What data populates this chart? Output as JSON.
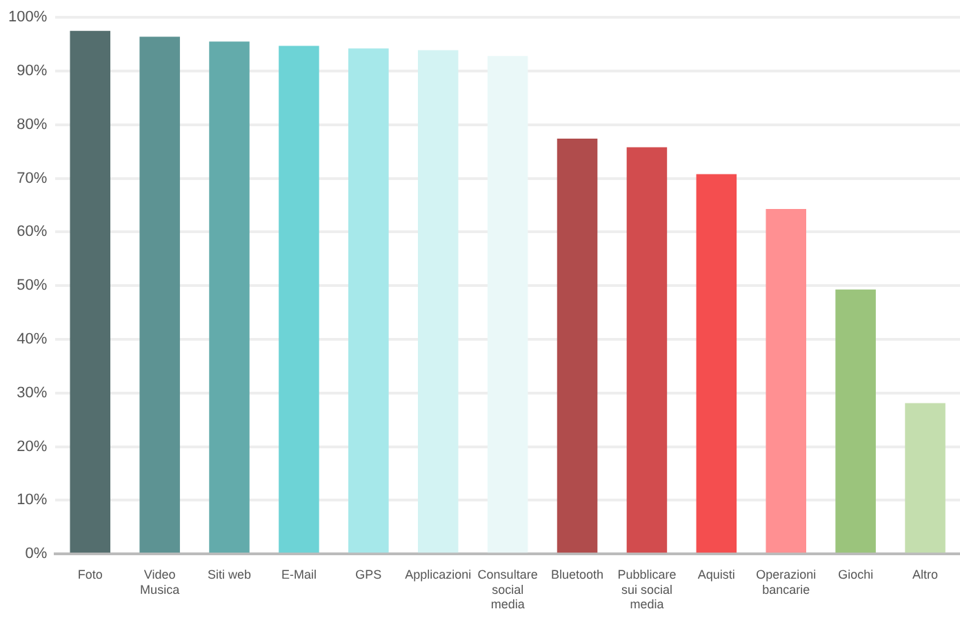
{
  "chart_data": {
    "type": "bar",
    "categories": [
      "Foto",
      "Video Musica",
      "Siti web",
      "E-Mail",
      "GPS",
      "Applicazioni",
      "Consultare social media",
      "Bluetooth",
      "Pubblicare sui social media",
      "Aquisti",
      "Operazioni bancarie",
      "Giochi",
      "Altro"
    ],
    "values": [
      97.5,
      96.4,
      95.5,
      94.7,
      94.2,
      93.9,
      92.8,
      77.4,
      75.8,
      70.8,
      64.3,
      49.3,
      28.1
    ],
    "colors": [
      "#546e6e",
      "#5d9393",
      "#63abab",
      "#6dd3d6",
      "#a6e8ea",
      "#d3f3f3",
      "#eaf8f8",
      "#b04c4c",
      "#d24c4e",
      "#f44e4f",
      "#ff9092",
      "#9bc47c",
      "#c4deae"
    ],
    "ylim": [
      0,
      100
    ],
    "yticks": [
      {
        "value": 0,
        "label": "0%"
      },
      {
        "value": 10,
        "label": "10%"
      },
      {
        "value": 20,
        "label": "20%"
      },
      {
        "value": 30,
        "label": "30%"
      },
      {
        "value": 40,
        "label": "40%"
      },
      {
        "value": 50,
        "label": "50%"
      },
      {
        "value": 60,
        "label": "60%"
      },
      {
        "value": 70,
        "label": "70%"
      },
      {
        "value": 80,
        "label": "80%"
      },
      {
        "value": 90,
        "label": "90%"
      },
      {
        "value": 100,
        "label": "100%"
      }
    ],
    "grid": "y",
    "legend": false
  }
}
